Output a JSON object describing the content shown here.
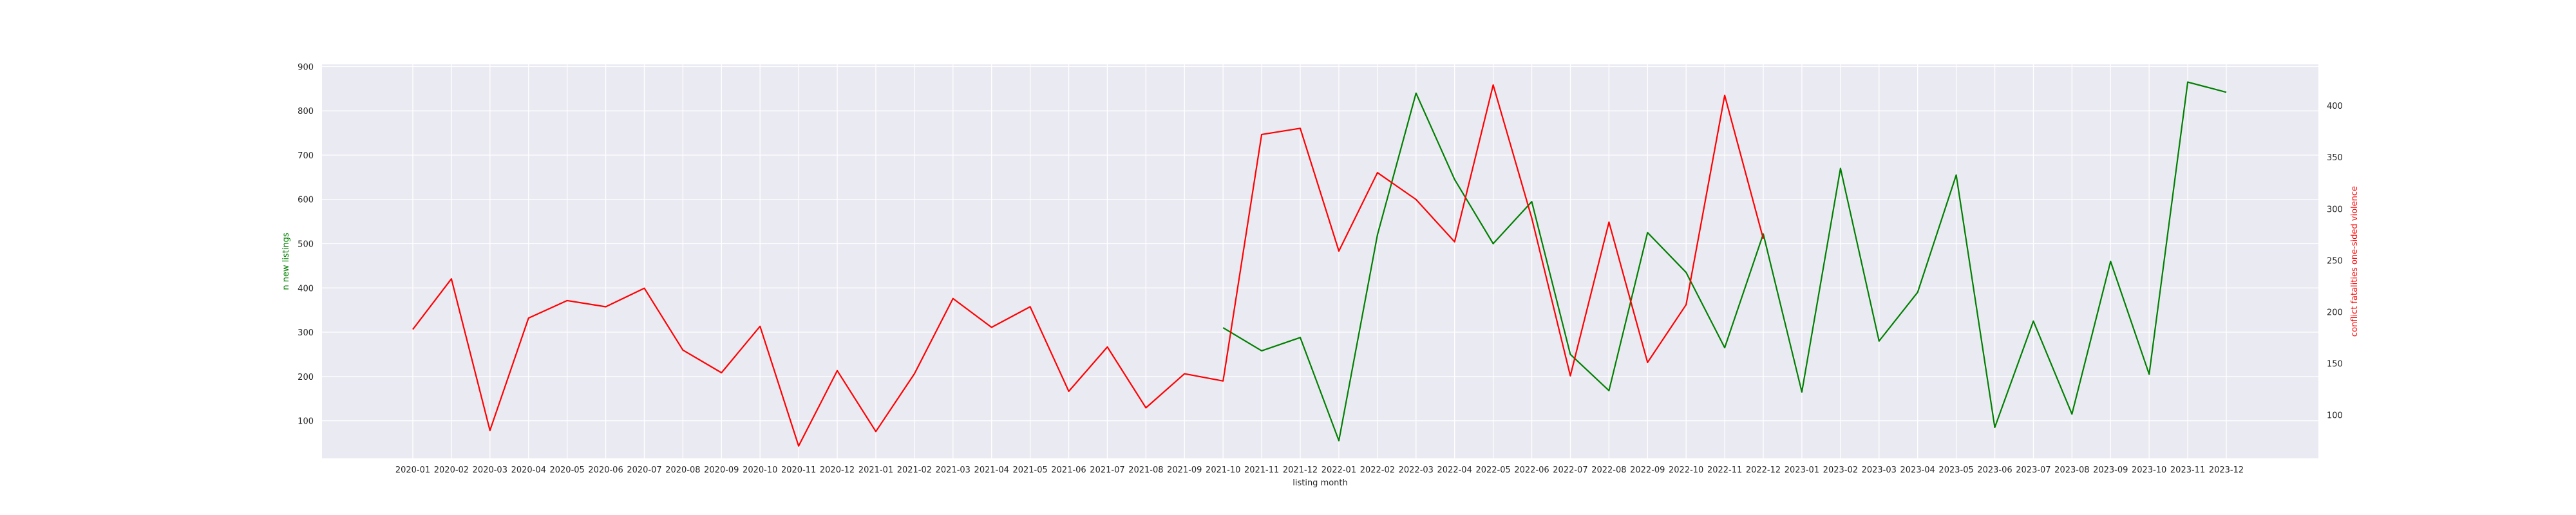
{
  "chart_data": {
    "type": "line",
    "title": "",
    "xlabel": "listing month",
    "ylabel_left": "n new listings",
    "ylabel_right": "conflict fatalities one-sided violence",
    "grid": true,
    "legend": "none",
    "plot_background": "#EAEAF2",
    "categories": [
      "2020-01",
      "2020-02",
      "2020-03",
      "2020-04",
      "2020-05",
      "2020-06",
      "2020-07",
      "2020-08",
      "2020-09",
      "2020-10",
      "2020-11",
      "2020-12",
      "2021-01",
      "2021-02",
      "2021-03",
      "2021-04",
      "2021-05",
      "2021-06",
      "2021-07",
      "2021-08",
      "2021-09",
      "2021-10",
      "2021-11",
      "2021-12",
      "2022-01",
      "2022-02",
      "2022-03",
      "2022-04",
      "2022-05",
      "2022-06",
      "2022-07",
      "2022-08",
      "2022-09",
      "2022-10",
      "2022-11",
      "2022-12",
      "2023-01",
      "2023-02",
      "2023-03",
      "2023-04",
      "2023-05",
      "2023-06",
      "2023-07",
      "2023-08",
      "2023-09",
      "2023-10",
      "2023-11",
      "2023-12"
    ],
    "left_axis": {
      "ylim": [
        15,
        905
      ],
      "ticks": [
        100,
        200,
        300,
        400,
        500,
        600,
        700,
        800,
        900
      ],
      "color": "green"
    },
    "right_axis": {
      "ylim": [
        58,
        440
      ],
      "ticks": [
        100,
        150,
        200,
        250,
        300,
        350,
        400
      ],
      "color": "red"
    },
    "series": [
      {
        "axis": "left",
        "color": "#008000",
        "values": [
          null,
          null,
          null,
          null,
          null,
          null,
          null,
          null,
          null,
          null,
          null,
          null,
          null,
          null,
          null,
          null,
          null,
          null,
          null,
          null,
          null,
          310,
          258,
          288,
          55,
          520,
          840,
          645,
          500,
          595,
          250,
          168,
          525,
          435,
          265,
          522,
          165,
          670,
          280,
          390,
          655,
          85,
          325,
          115,
          460,
          205,
          865,
          842
        ]
      },
      {
        "axis": "right",
        "color": "#FF0000",
        "values": [
          183,
          232,
          85,
          194,
          211,
          205,
          223,
          163,
          141,
          186,
          70,
          143,
          84,
          140,
          213,
          185,
          205,
          123,
          166,
          107,
          140,
          133,
          372,
          378,
          259,
          335,
          309,
          268,
          420,
          291,
          138,
          287,
          151,
          207,
          410,
          271,
          null,
          null,
          null,
          null,
          null,
          null,
          null,
          null,
          null,
          null,
          null,
          null
        ]
      }
    ]
  }
}
